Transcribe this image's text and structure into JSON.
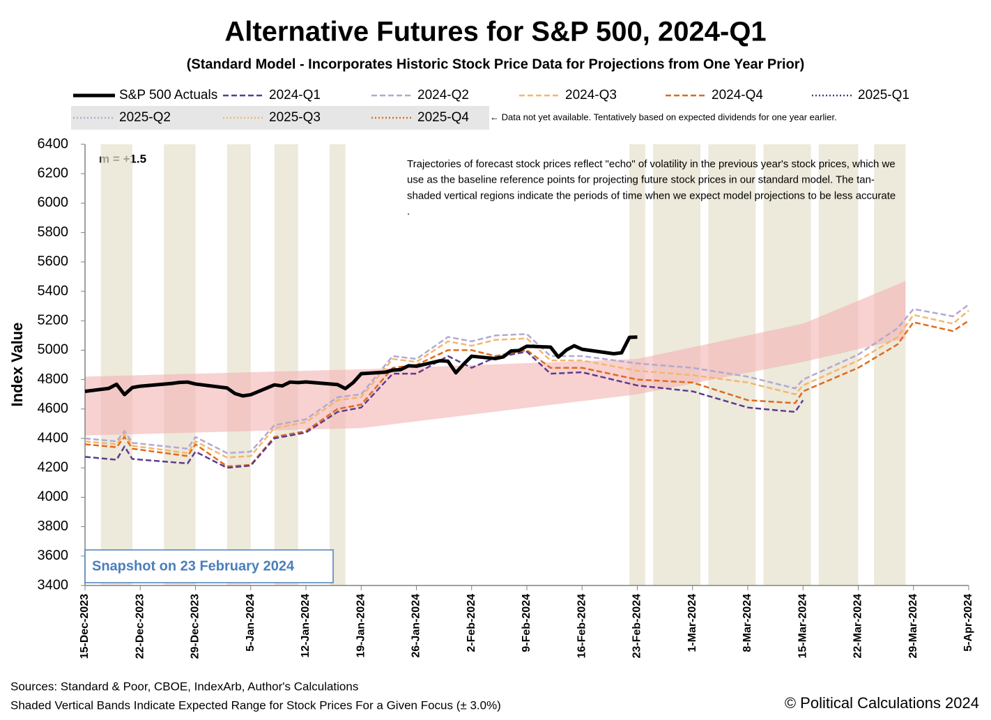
{
  "chart_data": {
    "type": "line",
    "title": "Alternative Futures for S&P 500, 2024-Q1",
    "subtitle": "(Standard Model - Incorporates Historic Stock Price Data for Projections from One Year Prior)",
    "ylabel": "Index Value",
    "m_label": "m = +1.5",
    "annotation_lines": [
      "Trajectories of forecast stock prices reflect \"echo\" of volatility in  the previous year's stock prices, which we",
      "use as the baseline reference points for projecting future stock prices in our standard model.   The tan-",
      "shaded vertical regions indicate the periods of time when we expect model projections to be less accurate",
      "."
    ],
    "snapshot_label": "Snapshot on 23 February 2024",
    "legend_note": "← Data not yet available.  Tentatively based on expected dividends for one year earlier.",
    "sources": [
      "Sources: Standard & Poor, CBOE, IndexArb, Author's Calculations",
      "Shaded Vertical Bands Indicate Expected Range for Stock Prices For a Given Focus (± 3.0%)"
    ],
    "copyright": "© Political Calculations 2024",
    "ylim": [
      3400,
      6400
    ],
    "yticks": [
      3400,
      3600,
      3800,
      4000,
      4200,
      4400,
      4600,
      4800,
      5000,
      5200,
      5400,
      5600,
      5800,
      6000,
      6200,
      6400
    ],
    "xlim": [
      "2023-12-15",
      "2024-04-05"
    ],
    "xticks": [
      {
        "value": "2023-12-15",
        "label": "15-Dec-2023"
      },
      {
        "value": "2023-12-22",
        "label": "22-Dec-2023"
      },
      {
        "value": "2023-12-29",
        "label": "29-Dec-2023"
      },
      {
        "value": "2024-01-05",
        "label": "5-Jan-2024"
      },
      {
        "value": "2024-01-12",
        "label": "12-Jan-2024"
      },
      {
        "value": "2024-01-19",
        "label": "19-Jan-2024"
      },
      {
        "value": "2024-01-26",
        "label": "26-Jan-2024"
      },
      {
        "value": "2024-02-02",
        "label": "2-Feb-2024"
      },
      {
        "value": "2024-02-09",
        "label": "9-Feb-2024"
      },
      {
        "value": "2024-02-16",
        "label": "16-Feb-2024"
      },
      {
        "value": "2024-02-23",
        "label": "23-Feb-2024"
      },
      {
        "value": "2024-03-01",
        "label": "1-Mar-2024"
      },
      {
        "value": "2024-03-08",
        "label": "8-Mar-2024"
      },
      {
        "value": "2024-03-15",
        "label": "15-Mar-2024"
      },
      {
        "value": "2024-03-22",
        "label": "22-Mar-2024"
      },
      {
        "value": "2024-03-29",
        "label": "29-Mar-2024"
      },
      {
        "value": "2024-04-05",
        "label": "5-Apr-2024"
      }
    ],
    "grid": false,
    "band": {
      "color": "#f4b3b3",
      "x": [
        "2023-12-15",
        "2024-01-19",
        "2024-02-23",
        "2024-03-15",
        "2024-03-28"
      ],
      "lower": [
        4420,
        4470,
        4700,
        4920,
        5080
      ],
      "upper": [
        4820,
        4870,
        4940,
        5180,
        5470
      ]
    },
    "shaded_color": "#e6dfcc",
    "shaded_periods": [
      [
        "2023-12-17",
        "2023-12-21"
      ],
      [
        "2023-12-25",
        "2023-12-29"
      ],
      [
        "2024-01-02",
        "2024-01-05"
      ],
      [
        "2024-01-08",
        "2024-01-11"
      ],
      [
        "2024-01-15",
        "2024-01-17"
      ],
      [
        "2024-02-22",
        "2024-02-24"
      ],
      [
        "2024-02-25",
        "2024-03-02"
      ],
      [
        "2024-03-03",
        "2024-03-09"
      ],
      [
        "2024-03-10",
        "2024-03-16"
      ],
      [
        "2024-03-17",
        "2024-03-22"
      ],
      [
        "2024-03-24",
        "2024-03-28"
      ]
    ],
    "series": [
      {
        "name": "S&P 500 Actuals",
        "color": "#000000",
        "style": "solid",
        "x": [
          "2023-12-15",
          "2023-12-18",
          "2023-12-19",
          "2023-12-20",
          "2023-12-21",
          "2023-12-22",
          "2023-12-26",
          "2023-12-27",
          "2023-12-28",
          "2023-12-29",
          "2024-01-02",
          "2024-01-03",
          "2024-01-04",
          "2024-01-05",
          "2024-01-08",
          "2024-01-09",
          "2024-01-10",
          "2024-01-11",
          "2024-01-12",
          "2024-01-16",
          "2024-01-17",
          "2024-01-18",
          "2024-01-19",
          "2024-01-22",
          "2024-01-23",
          "2024-01-24",
          "2024-01-25",
          "2024-01-26",
          "2024-01-29",
          "2024-01-30",
          "2024-01-31",
          "2024-02-01",
          "2024-02-02",
          "2024-02-05",
          "2024-02-06",
          "2024-02-07",
          "2024-02-08",
          "2024-02-09",
          "2024-02-12",
          "2024-02-13",
          "2024-02-14",
          "2024-02-15",
          "2024-02-16",
          "2024-02-20",
          "2024-02-21",
          "2024-02-22",
          "2024-02-23"
        ],
        "values": [
          4720,
          4740,
          4768,
          4698,
          4746,
          4755,
          4774,
          4781,
          4783,
          4770,
          4743,
          4705,
          4689,
          4697,
          4764,
          4757,
          4783,
          4780,
          4784,
          4766,
          4739,
          4780,
          4840,
          4850,
          4864,
          4868,
          4894,
          4891,
          4928,
          4925,
          4846,
          4906,
          4959,
          4943,
          4954,
          4995,
          4998,
          5027,
          5021,
          4953,
          5001,
          5030,
          5006,
          4976,
          4982,
          5087,
          5089
        ]
      },
      {
        "name": "2024-Q1",
        "color": "#5b3c8c",
        "style": "dashed",
        "x": [
          "2023-12-15",
          "2023-12-19",
          "2023-12-20",
          "2023-12-21",
          "2023-12-28",
          "2023-12-29",
          "2024-01-02",
          "2024-01-05",
          "2024-01-08",
          "2024-01-12",
          "2024-01-16",
          "2024-01-19",
          "2024-01-23",
          "2024-01-26",
          "2024-01-30",
          "2024-02-02",
          "2024-02-05",
          "2024-02-09",
          "2024-02-12",
          "2024-02-16",
          "2024-02-23",
          "2024-03-01",
          "2024-03-08",
          "2024-03-14",
          "2024-03-15"
        ],
        "values": [
          4275,
          4255,
          4345,
          4260,
          4230,
          4310,
          4200,
          4215,
          4400,
          4440,
          4580,
          4610,
          4840,
          4840,
          4960,
          4880,
          4950,
          4990,
          4840,
          4850,
          4760,
          4720,
          4610,
          4580,
          4660
        ]
      },
      {
        "name": "2024-Q2",
        "color": "#b3a8d0",
        "style": "dashed",
        "x": [
          "2023-12-15",
          "2023-12-19",
          "2023-12-20",
          "2023-12-21",
          "2023-12-28",
          "2023-12-29",
          "2024-01-02",
          "2024-01-05",
          "2024-01-08",
          "2024-01-12",
          "2024-01-16",
          "2024-01-19",
          "2024-01-23",
          "2024-01-26",
          "2024-01-30",
          "2024-02-02",
          "2024-02-05",
          "2024-02-09",
          "2024-02-12",
          "2024-02-16",
          "2024-02-23",
          "2024-03-01",
          "2024-03-08",
          "2024-03-14",
          "2024-03-15",
          "2024-03-22",
          "2024-03-27",
          "2024-03-29",
          "2024-04-03",
          "2024-04-05"
        ],
        "values": [
          4400,
          4380,
          4450,
          4370,
          4330,
          4410,
          4300,
          4310,
          4490,
          4530,
          4680,
          4700,
          4960,
          4940,
          5090,
          5060,
          5100,
          5110,
          4960,
          4960,
          4910,
          4880,
          4820,
          4740,
          4800,
          4970,
          5150,
          5280,
          5230,
          5310
        ]
      },
      {
        "name": "2024-Q3",
        "color": "#f5b66b",
        "style": "dashed",
        "x": [
          "2023-12-15",
          "2023-12-19",
          "2023-12-20",
          "2023-12-21",
          "2023-12-28",
          "2023-12-29",
          "2024-01-02",
          "2024-01-05",
          "2024-01-08",
          "2024-01-12",
          "2024-01-16",
          "2024-01-19",
          "2024-01-23",
          "2024-01-26",
          "2024-01-30",
          "2024-02-02",
          "2024-02-05",
          "2024-02-09",
          "2024-02-12",
          "2024-02-16",
          "2024-02-23",
          "2024-03-01",
          "2024-03-08",
          "2024-03-14",
          "2024-03-15",
          "2024-03-22",
          "2024-03-27",
          "2024-03-29",
          "2024-04-03",
          "2024-04-05"
        ],
        "values": [
          4380,
          4360,
          4430,
          4350,
          4300,
          4380,
          4270,
          4280,
          4470,
          4510,
          4660,
          4680,
          4940,
          4920,
          5060,
          5030,
          5070,
          5080,
          4930,
          4930,
          4860,
          4830,
          4780,
          4700,
          4760,
          4930,
          5090,
          5240,
          5180,
          5270
        ]
      },
      {
        "name": "2024-Q4",
        "color": "#e06a1b",
        "style": "dashed",
        "x": [
          "2023-12-15",
          "2023-12-19",
          "2023-12-20",
          "2023-12-21",
          "2023-12-28",
          "2023-12-29",
          "2024-01-02",
          "2024-01-05",
          "2024-01-08",
          "2024-01-12",
          "2024-01-16",
          "2024-01-19",
          "2024-01-23",
          "2024-01-26",
          "2024-01-30",
          "2024-02-02",
          "2024-02-05",
          "2024-02-09",
          "2024-02-12",
          "2024-02-16",
          "2024-02-23",
          "2024-03-01",
          "2024-03-08",
          "2024-03-14",
          "2024-03-15",
          "2024-03-22",
          "2024-03-27",
          "2024-03-29",
          "2024-04-03",
          "2024-04-05"
        ],
        "values": [
          4360,
          4340,
          4410,
          4330,
          4280,
          4360,
          4210,
          4220,
          4410,
          4450,
          4600,
          4630,
          4880,
          4900,
          5000,
          5000,
          4960,
          5000,
          4880,
          4880,
          4800,
          4780,
          4660,
          4640,
          4720,
          4880,
          5040,
          5190,
          5130,
          5200
        ]
      },
      {
        "name": "2025-Q1",
        "color": "#4b3a7a",
        "style": "dotted",
        "x": [],
        "values": []
      },
      {
        "name": "2025-Q2",
        "color": "#b3a8d0",
        "style": "dotted",
        "x": [],
        "values": []
      },
      {
        "name": "2025-Q3",
        "color": "#f5b66b",
        "style": "dotted",
        "x": [],
        "values": []
      },
      {
        "name": "2025-Q4",
        "color": "#e06a1b",
        "style": "dotted",
        "x": [],
        "values": []
      }
    ]
  }
}
